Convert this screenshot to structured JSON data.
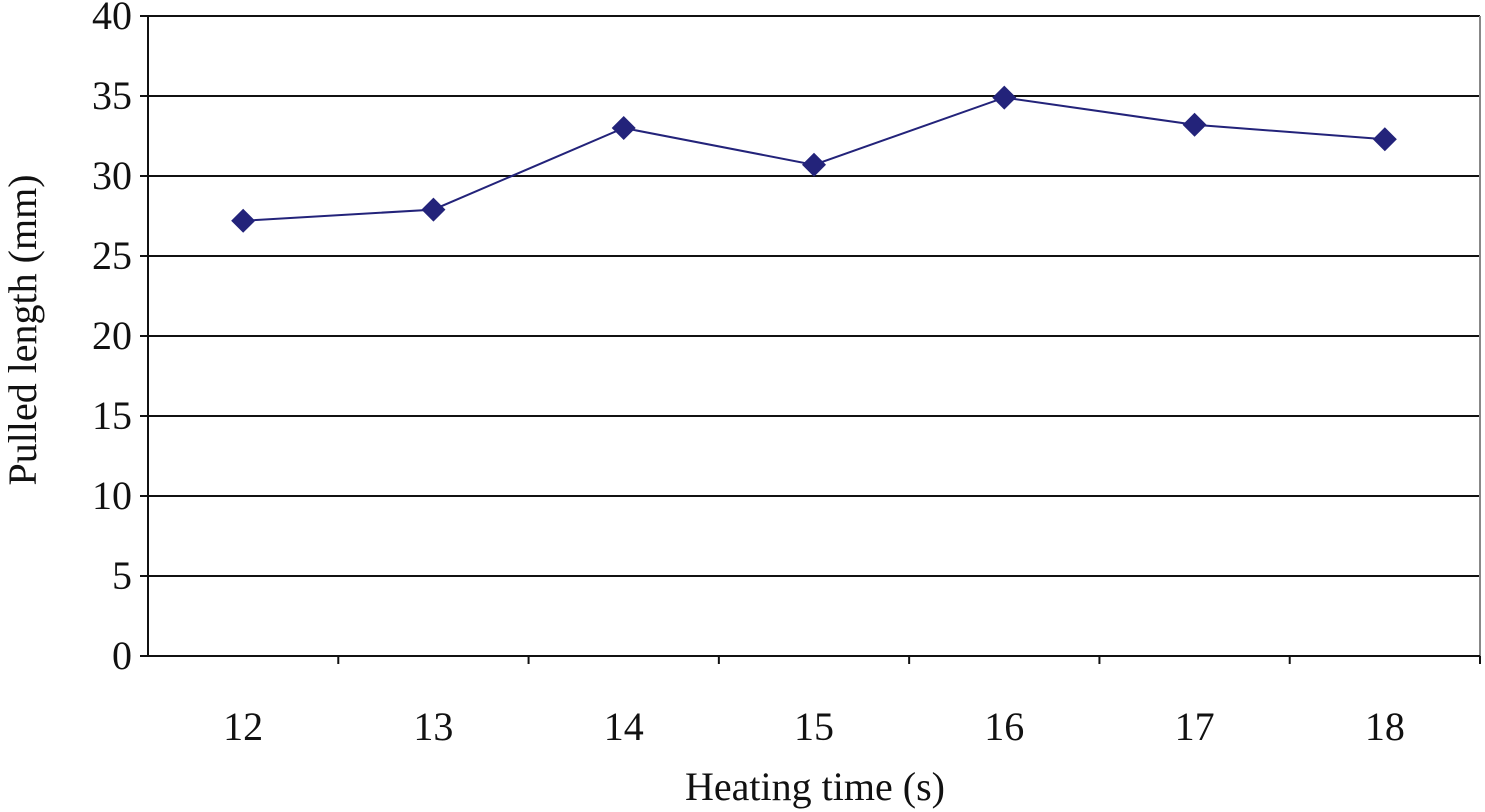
{
  "chart_data": {
    "type": "line",
    "title": "",
    "xlabel": "Heating time (s)",
    "ylabel": "Pulled length (mm)",
    "categories": [
      "12",
      "13",
      "14",
      "15",
      "16",
      "17",
      "18"
    ],
    "series": [
      {
        "name": "Pulled length",
        "values": [
          27.2,
          27.9,
          33.0,
          30.7,
          34.9,
          33.2,
          32.3
        ],
        "color": "#23237a",
        "marker": "diamond"
      }
    ],
    "ylim": [
      0,
      40
    ],
    "yticks": [
      0,
      5,
      10,
      15,
      20,
      25,
      30,
      35,
      40
    ],
    "grid": true,
    "legend": "none"
  }
}
